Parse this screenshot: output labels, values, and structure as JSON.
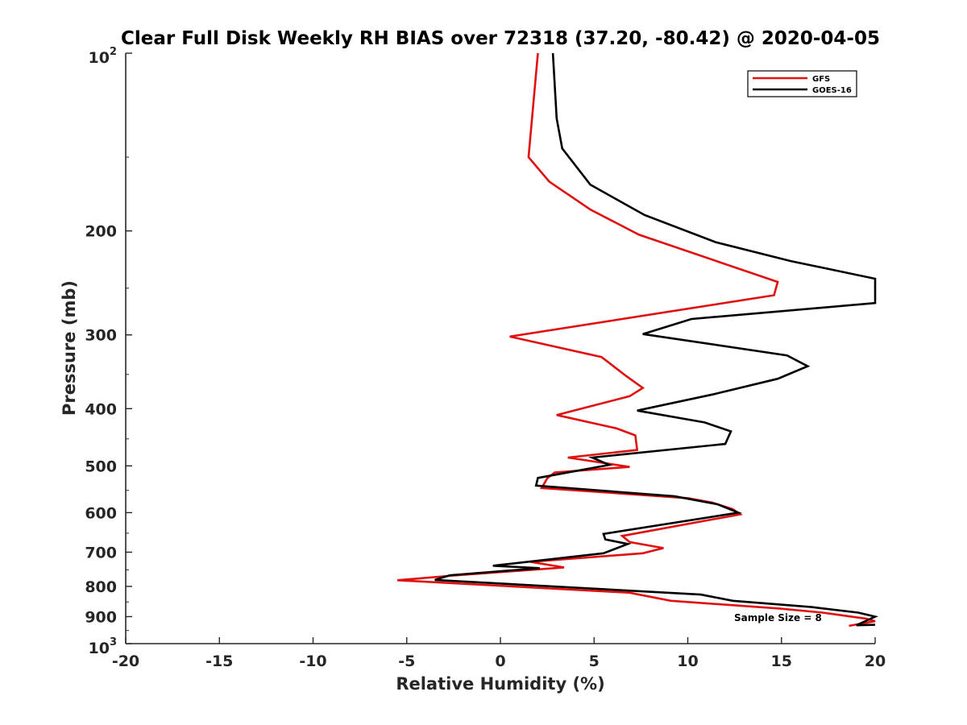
{
  "chart_data": {
    "type": "line",
    "title": "Clear Full Disk Weekly RH BIAS over 72318 (37.20, -80.42) @ 2020-04-05",
    "xlabel": "Relative Humidity (%)",
    "ylabel": "Pressure (mb)",
    "xlim": [
      -20,
      20
    ],
    "ylim": [
      100,
      1000
    ],
    "y_scale": "log",
    "y_reversed": true,
    "x_ticks": [
      "-20",
      "-15",
      "-10",
      "-5",
      "0",
      "5",
      "10",
      "15",
      "20"
    ],
    "y_ticks": [
      {
        "value": 100,
        "base": "10",
        "exp": "2"
      },
      {
        "value": 200,
        "base": "200",
        "exp": ""
      },
      {
        "value": 300,
        "base": "300",
        "exp": ""
      },
      {
        "value": 400,
        "base": "400",
        "exp": ""
      },
      {
        "value": 500,
        "base": "500",
        "exp": ""
      },
      {
        "value": 600,
        "base": "600",
        "exp": ""
      },
      {
        "value": 700,
        "base": "700",
        "exp": ""
      },
      {
        "value": 800,
        "base": "800",
        "exp": ""
      },
      {
        "value": 900,
        "base": "900",
        "exp": ""
      },
      {
        "value": 1000,
        "base": "10",
        "exp": "3"
      }
    ],
    "grid": false,
    "legend_position": "top-right",
    "annotation": "Sample Size = 8",
    "series": [
      {
        "name": "GFS",
        "color": "#e01010",
        "points": [
          [
            2.0,
            100
          ],
          [
            1.5,
            150
          ],
          [
            2.6,
            165
          ],
          [
            4.8,
            184
          ],
          [
            7.4,
            203
          ],
          [
            14.8,
            244
          ],
          [
            14.6,
            257
          ],
          [
            0.5,
            302
          ],
          [
            5.4,
            327
          ],
          [
            6.7,
            352
          ],
          [
            7.6,
            369
          ],
          [
            6.9,
            381
          ],
          [
            3.0,
            410
          ],
          [
            6.2,
            432
          ],
          [
            7.2,
            444
          ],
          [
            7.3,
            470
          ],
          [
            3.6,
            484
          ],
          [
            6.9,
            502
          ],
          [
            2.9,
            513
          ],
          [
            2.5,
            525
          ],
          [
            2.2,
            545
          ],
          [
            10.0,
            567
          ],
          [
            11.3,
            577
          ],
          [
            12.4,
            592
          ],
          [
            12.8,
            604
          ],
          [
            6.5,
            657
          ],
          [
            6.9,
            673
          ],
          [
            8.7,
            689
          ],
          [
            7.6,
            703
          ],
          [
            1.6,
            727
          ],
          [
            3.4,
            743
          ],
          [
            -2.8,
            768
          ],
          [
            -5.5,
            781
          ],
          [
            6.9,
            820
          ],
          [
            9.1,
            846
          ],
          [
            14.9,
            872
          ],
          [
            17.2,
            886
          ],
          [
            19.5,
            907
          ],
          [
            20.0,
            916
          ],
          [
            18.6,
            933
          ]
        ]
      },
      {
        "name": "GOES-16",
        "color": "#000000",
        "points": [
          [
            2.8,
            100
          ],
          [
            3.0,
            129
          ],
          [
            3.3,
            145
          ],
          [
            4.8,
            167
          ],
          [
            7.7,
            188
          ],
          [
            11.5,
            209
          ],
          [
            15.5,
            225
          ],
          [
            20.0,
            241
          ],
          [
            20.0,
            265
          ],
          [
            10.2,
            282
          ],
          [
            7.6,
            299
          ],
          [
            15.3,
            325
          ],
          [
            16.4,
            339
          ],
          [
            14.8,
            356
          ],
          [
            11.4,
            378
          ],
          [
            7.3,
            403
          ],
          [
            10.9,
            422
          ],
          [
            12.3,
            437
          ],
          [
            12.0,
            459
          ],
          [
            4.9,
            484
          ],
          [
            5.8,
            498
          ],
          [
            2.0,
            524
          ],
          [
            1.9,
            540
          ],
          [
            9.3,
            563
          ],
          [
            11.6,
            581
          ],
          [
            12.7,
            600
          ],
          [
            5.5,
            652
          ],
          [
            5.6,
            666
          ],
          [
            6.8,
            678
          ],
          [
            5.5,
            703
          ],
          [
            -0.4,
            738
          ],
          [
            2.1,
            745
          ],
          [
            -2.7,
            766
          ],
          [
            -3.5,
            780
          ],
          [
            10.7,
            826
          ],
          [
            12.4,
            846
          ],
          [
            16.6,
            867
          ],
          [
            19.1,
            886
          ],
          [
            20.0,
            900
          ],
          [
            19.0,
            931
          ],
          [
            20.0,
            929
          ]
        ]
      }
    ]
  }
}
